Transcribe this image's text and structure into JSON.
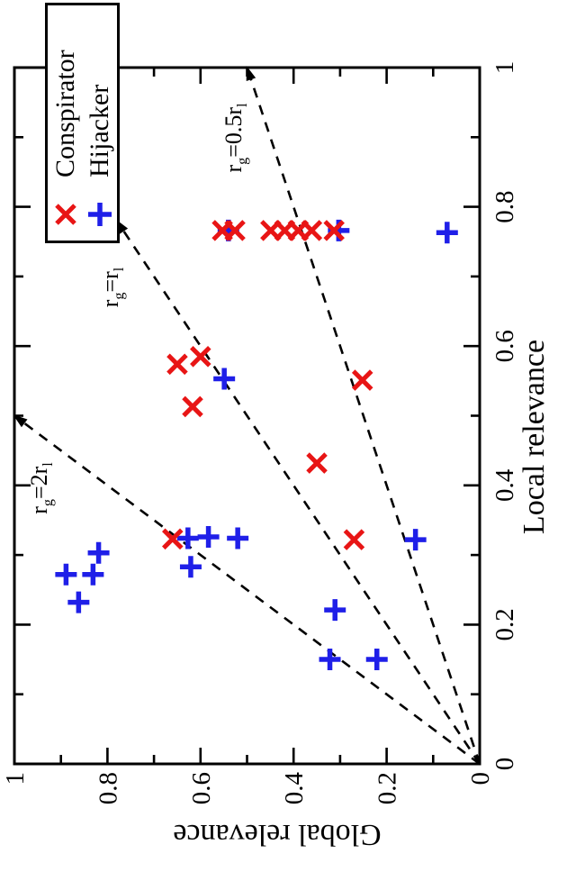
{
  "legend": {
    "items": [
      {
        "label": "Conspirator",
        "marker": "x-cross",
        "color": "#e81515"
      },
      {
        "label": "Hijacker",
        "marker": "plus",
        "color": "#1f1fe8"
      }
    ]
  },
  "chart_data": {
    "type": "scatter",
    "title": "",
    "xlabel": "Local relevance",
    "ylabel": "Global relevance",
    "xlim": [
      0,
      1
    ],
    "ylim": [
      0,
      1
    ],
    "x_tick_labels": [
      "0",
      "0.2",
      "0.4",
      "0.6",
      "0.8",
      "1"
    ],
    "y_tick_labels": [
      "0",
      "0.2",
      "0.4",
      "0.6",
      "0.8",
      "1"
    ],
    "major_tick_step": 0.2,
    "minor_tick_step": 0.1,
    "grid": false,
    "legend_position": "top-right",
    "series": [
      {
        "name": "Conspirator",
        "marker": "x",
        "color": "#e81515",
        "points": [
          [
            0.766,
            0.553
          ],
          [
            0.766,
            0.526
          ],
          [
            0.766,
            0.449
          ],
          [
            0.766,
            0.419
          ],
          [
            0.766,
            0.39
          ],
          [
            0.766,
            0.361
          ],
          [
            0.766,
            0.313
          ],
          [
            0.585,
            0.6
          ],
          [
            0.574,
            0.65
          ],
          [
            0.513,
            0.617
          ],
          [
            0.551,
            0.252
          ],
          [
            0.432,
            0.35
          ],
          [
            0.322,
            0.27
          ],
          [
            0.323,
            0.66
          ]
        ]
      },
      {
        "name": "Hijacker",
        "marker": "+",
        "color": "#1f1fe8",
        "points": [
          [
            0.766,
            0.54
          ],
          [
            0.766,
            0.303
          ],
          [
            0.763,
            0.07
          ],
          [
            0.553,
            0.549
          ],
          [
            0.324,
            0.627
          ],
          [
            0.326,
            0.583
          ],
          [
            0.324,
            0.52
          ],
          [
            0.283,
            0.621
          ],
          [
            0.303,
            0.819
          ],
          [
            0.272,
            0.889
          ],
          [
            0.272,
            0.831
          ],
          [
            0.232,
            0.862
          ],
          [
            0.221,
            0.311
          ],
          [
            0.15,
            0.322
          ],
          [
            0.15,
            0.221
          ],
          [
            0.322,
            0.138
          ]
        ]
      }
    ],
    "reference_lines": [
      {
        "label": "r_g=2r_l",
        "relation": "global = 2 x local",
        "from": [
          0,
          0
        ],
        "to": [
          0.5,
          1.0
        ]
      },
      {
        "label": "r_g=r_l",
        "relation": "global = local",
        "from": [
          0,
          0
        ],
        "to": [
          0.78,
          0.78
        ]
      },
      {
        "label": "r_g=0.5r_l",
        "relation": "global = 0.5 x local",
        "from": [
          0,
          0
        ],
        "to": [
          1.0,
          0.5
        ]
      }
    ]
  }
}
